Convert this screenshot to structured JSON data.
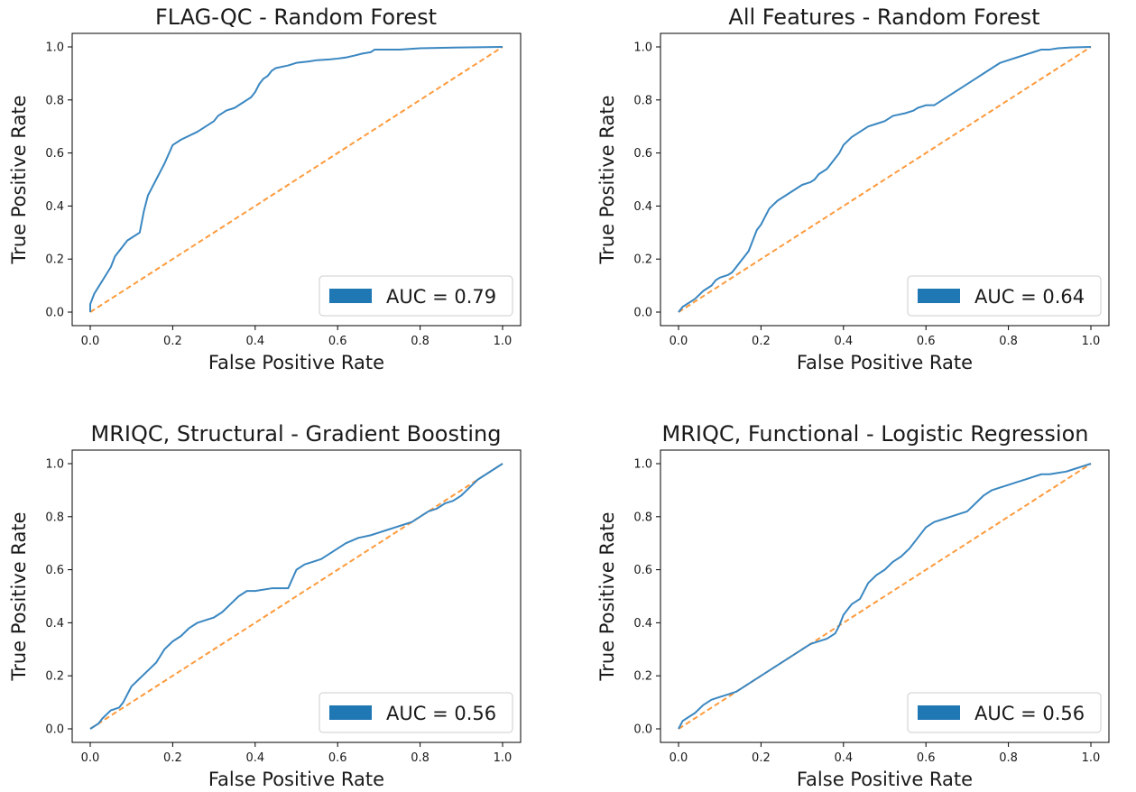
{
  "colors": {
    "roc_line": "#3a87c1",
    "chance_line": "#ff9a3c",
    "legend_patch": "#1f77b4"
  },
  "chart_data": [
    {
      "type": "line",
      "title": "FLAG-QC - Random Forest",
      "xlabel": "False Positive Rate",
      "ylabel": "True Positive Rate",
      "xlim": [
        0.0,
        1.0
      ],
      "ylim": [
        0.0,
        1.0
      ],
      "xticks": [
        "0.0",
        "0.2",
        "0.4",
        "0.6",
        "0.8",
        "1.0"
      ],
      "yticks": [
        "0.0",
        "0.2",
        "0.4",
        "0.6",
        "0.8",
        "1.0"
      ],
      "grid": false,
      "legend": {
        "label": "AUC = 0.79",
        "position": "lower-right"
      },
      "series": [
        {
          "style": "solid",
          "x": [
            0.0,
            0.0,
            0.01,
            0.03,
            0.05,
            0.06,
            0.08,
            0.09,
            0.11,
            0.12,
            0.13,
            0.14,
            0.15,
            0.16,
            0.17,
            0.18,
            0.2,
            0.22,
            0.26,
            0.28,
            0.3,
            0.31,
            0.33,
            0.35,
            0.37,
            0.38,
            0.39,
            0.4,
            0.41,
            0.42,
            0.43,
            0.44,
            0.45,
            0.48,
            0.5,
            0.53,
            0.55,
            0.58,
            0.6,
            0.62,
            0.64,
            0.66,
            0.68,
            0.69,
            0.75,
            0.8,
            0.9,
            1.0
          ],
          "y": [
            0.0,
            0.03,
            0.07,
            0.12,
            0.17,
            0.21,
            0.25,
            0.27,
            0.29,
            0.3,
            0.38,
            0.44,
            0.47,
            0.5,
            0.53,
            0.56,
            0.63,
            0.65,
            0.68,
            0.7,
            0.72,
            0.74,
            0.76,
            0.77,
            0.79,
            0.8,
            0.81,
            0.83,
            0.86,
            0.88,
            0.89,
            0.91,
            0.92,
            0.93,
            0.94,
            0.945,
            0.95,
            0.953,
            0.956,
            0.96,
            0.967,
            0.975,
            0.98,
            0.99,
            0.99,
            0.995,
            0.998,
            1.0
          ]
        },
        {
          "style": "dashed",
          "x": [
            0.0,
            1.0
          ],
          "y": [
            0.0,
            1.0
          ]
        }
      ]
    },
    {
      "type": "line",
      "title": "All Features - Random Forest",
      "xlabel": "False Positive Rate",
      "ylabel": "True Positive Rate",
      "xlim": [
        0.0,
        1.0
      ],
      "ylim": [
        0.0,
        1.0
      ],
      "xticks": [
        "0.0",
        "0.2",
        "0.4",
        "0.6",
        "0.8",
        "1.0"
      ],
      "yticks": [
        "0.0",
        "0.2",
        "0.4",
        "0.6",
        "0.8",
        "1.0"
      ],
      "grid": false,
      "legend": {
        "label": "AUC = 0.64",
        "position": "lower-right"
      },
      "series": [
        {
          "style": "solid",
          "x": [
            0.0,
            0.01,
            0.02,
            0.04,
            0.06,
            0.08,
            0.09,
            0.1,
            0.12,
            0.13,
            0.14,
            0.15,
            0.16,
            0.17,
            0.18,
            0.19,
            0.2,
            0.21,
            0.22,
            0.24,
            0.26,
            0.28,
            0.3,
            0.32,
            0.33,
            0.34,
            0.36,
            0.37,
            0.38,
            0.39,
            0.4,
            0.42,
            0.44,
            0.46,
            0.48,
            0.5,
            0.52,
            0.55,
            0.57,
            0.58,
            0.6,
            0.62,
            0.64,
            0.66,
            0.68,
            0.7,
            0.72,
            0.74,
            0.76,
            0.78,
            0.8,
            0.82,
            0.84,
            0.86,
            0.88,
            0.9,
            0.92,
            0.95,
            1.0
          ],
          "y": [
            0.0,
            0.02,
            0.03,
            0.05,
            0.08,
            0.1,
            0.12,
            0.13,
            0.14,
            0.15,
            0.17,
            0.19,
            0.21,
            0.23,
            0.27,
            0.31,
            0.33,
            0.36,
            0.39,
            0.42,
            0.44,
            0.46,
            0.48,
            0.49,
            0.5,
            0.52,
            0.54,
            0.56,
            0.58,
            0.6,
            0.63,
            0.66,
            0.68,
            0.7,
            0.71,
            0.72,
            0.74,
            0.75,
            0.76,
            0.77,
            0.78,
            0.78,
            0.8,
            0.82,
            0.84,
            0.86,
            0.88,
            0.9,
            0.92,
            0.94,
            0.95,
            0.96,
            0.97,
            0.98,
            0.99,
            0.99,
            0.995,
            0.998,
            1.0
          ]
        },
        {
          "style": "dashed",
          "x": [
            0.0,
            1.0
          ],
          "y": [
            0.0,
            1.0
          ]
        }
      ]
    },
    {
      "type": "line",
      "title": "MRIQC, Structural - Gradient Boosting",
      "xlabel": "False Positive Rate",
      "ylabel": "True Positive Rate",
      "xlim": [
        0.0,
        1.0
      ],
      "ylim": [
        0.0,
        1.0
      ],
      "xticks": [
        "0.0",
        "0.2",
        "0.4",
        "0.6",
        "0.8",
        "1.0"
      ],
      "yticks": [
        "0.0",
        "0.2",
        "0.4",
        "0.6",
        "0.8",
        "1.0"
      ],
      "grid": false,
      "legend": {
        "label": "AUC = 0.56",
        "position": "lower-right"
      },
      "series": [
        {
          "style": "solid",
          "x": [
            0.0,
            0.02,
            0.03,
            0.05,
            0.07,
            0.08,
            0.1,
            0.12,
            0.14,
            0.16,
            0.18,
            0.2,
            0.22,
            0.24,
            0.26,
            0.28,
            0.3,
            0.32,
            0.34,
            0.36,
            0.38,
            0.4,
            0.44,
            0.48,
            0.5,
            0.52,
            0.54,
            0.56,
            0.58,
            0.6,
            0.62,
            0.65,
            0.68,
            0.7,
            0.72,
            0.74,
            0.76,
            0.78,
            0.8,
            0.82,
            0.84,
            0.86,
            0.88,
            0.9,
            0.92,
            0.94,
            0.96,
            0.98,
            1.0
          ],
          "y": [
            0.0,
            0.02,
            0.04,
            0.07,
            0.08,
            0.1,
            0.16,
            0.19,
            0.22,
            0.25,
            0.3,
            0.33,
            0.35,
            0.38,
            0.4,
            0.41,
            0.42,
            0.44,
            0.47,
            0.5,
            0.52,
            0.52,
            0.53,
            0.53,
            0.6,
            0.62,
            0.63,
            0.64,
            0.66,
            0.68,
            0.7,
            0.72,
            0.73,
            0.74,
            0.75,
            0.76,
            0.77,
            0.78,
            0.8,
            0.82,
            0.83,
            0.85,
            0.86,
            0.88,
            0.91,
            0.94,
            0.96,
            0.98,
            1.0
          ]
        },
        {
          "style": "dashed",
          "x": [
            0.0,
            1.0
          ],
          "y": [
            0.0,
            1.0
          ]
        }
      ]
    },
    {
      "type": "line",
      "title": "MRIQC, Functional - Logistic Regression",
      "xlabel": "False Positive Rate",
      "ylabel": "True Positive Rate",
      "xlim": [
        0.0,
        1.0
      ],
      "ylim": [
        0.0,
        1.0
      ],
      "xticks": [
        "0.0",
        "0.2",
        "0.4",
        "0.6",
        "0.8",
        "1.0"
      ],
      "yticks": [
        "0.0",
        "0.2",
        "0.4",
        "0.6",
        "0.8",
        "1.0"
      ],
      "grid": false,
      "legend": {
        "label": "AUC = 0.56",
        "position": "lower-right"
      },
      "series": [
        {
          "style": "solid",
          "x": [
            0.0,
            0.01,
            0.02,
            0.04,
            0.06,
            0.08,
            0.1,
            0.12,
            0.14,
            0.16,
            0.18,
            0.2,
            0.22,
            0.24,
            0.26,
            0.28,
            0.3,
            0.32,
            0.34,
            0.36,
            0.38,
            0.39,
            0.4,
            0.42,
            0.44,
            0.46,
            0.48,
            0.5,
            0.52,
            0.54,
            0.56,
            0.58,
            0.6,
            0.62,
            0.64,
            0.66,
            0.68,
            0.7,
            0.72,
            0.74,
            0.76,
            0.78,
            0.8,
            0.82,
            0.84,
            0.86,
            0.88,
            0.9,
            0.92,
            0.94,
            0.96,
            0.98,
            1.0
          ],
          "y": [
            0.0,
            0.03,
            0.04,
            0.06,
            0.09,
            0.11,
            0.12,
            0.13,
            0.14,
            0.16,
            0.18,
            0.2,
            0.22,
            0.24,
            0.26,
            0.28,
            0.3,
            0.32,
            0.33,
            0.34,
            0.36,
            0.39,
            0.43,
            0.47,
            0.49,
            0.55,
            0.58,
            0.6,
            0.63,
            0.65,
            0.68,
            0.72,
            0.76,
            0.78,
            0.79,
            0.8,
            0.81,
            0.82,
            0.85,
            0.88,
            0.9,
            0.91,
            0.92,
            0.93,
            0.94,
            0.95,
            0.96,
            0.96,
            0.965,
            0.97,
            0.98,
            0.99,
            1.0
          ]
        },
        {
          "style": "dashed",
          "x": [
            0.0,
            1.0
          ],
          "y": [
            0.0,
            1.0
          ]
        }
      ]
    }
  ]
}
